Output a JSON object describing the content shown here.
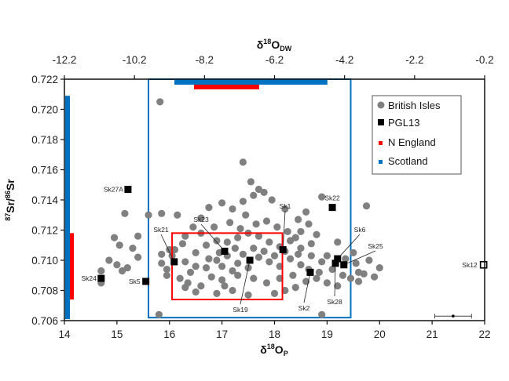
{
  "chart_data": {
    "type": "scatter",
    "title": "",
    "xlabel": {
      "main": "δ",
      "sup": "18",
      "base": "O",
      "sub": "P"
    },
    "x2label": {
      "main": "δ",
      "sup": "18",
      "base": "O",
      "sub": "DW"
    },
    "ylabel": {
      "sup1": "87",
      "t1": "Sr/",
      "sup2": "86",
      "t2": "Sr"
    },
    "xlim": [
      14,
      22
    ],
    "x2lim": [
      -12.2,
      -0.2
    ],
    "ylim": [
      0.706,
      0.722
    ],
    "x_ticks": [
      "14",
      "15",
      "16",
      "17",
      "18",
      "19",
      "20",
      "21",
      "22"
    ],
    "x2_ticks": [
      "-12.2",
      "-10.2",
      "-8.2",
      "-6.2",
      "-4.2",
      "-2.2",
      "-0.2"
    ],
    "y_ticks": [
      "0.722",
      "0.720",
      "0.718",
      "0.716",
      "0.714",
      "0.712",
      "0.710",
      "0.708",
      "0.706"
    ],
    "legend": {
      "position": "top-right",
      "entries": [
        {
          "label": "British Isles",
          "color": "#808080",
          "marker": "circle"
        },
        {
          "label": "PGL13",
          "color": "#000000",
          "marker": "square"
        },
        {
          "label": "N England",
          "color": "#ff0000",
          "marker": "square"
        },
        {
          "label": "Scotland",
          "color": "#0070c0",
          "marker": "square"
        }
      ]
    },
    "colors": {
      "british_isles": "#808080",
      "pgl13": "#000000",
      "n_england": "#ff0000",
      "scotland": "#0070c0"
    },
    "regions": {
      "scotland_box": {
        "x": [
          15.6,
          19.45
        ],
        "y": [
          0.7062,
          0.722
        ]
      },
      "n_england_box": {
        "x": [
          16.05,
          18.15
        ],
        "y": [
          0.7074,
          0.7118
        ]
      },
      "scotland_dw_range": [
        -9.06,
        -4.69
      ],
      "n_england_dw_range": [
        -8.5,
        -6.64
      ],
      "scotland_sr_range": [
        0.7061,
        0.7209
      ],
      "n_england_sr_range": [
        0.7074,
        0.7118
      ]
    },
    "error_bar": {
      "x": 21.4,
      "y": 0.7063,
      "x_err": 0.35
    },
    "pgl13": [
      {
        "label": "Sk27A",
        "x": 15.21,
        "y": 0.7147
      },
      {
        "label": "Sk24",
        "x": 14.7,
        "y": 0.7088
      },
      {
        "label": "Sk5",
        "x": 15.55,
        "y": 0.7086
      },
      {
        "label": "Sk21",
        "x": 16.09,
        "y": 0.7099
      },
      {
        "label": "Sk23",
        "x": 17.05,
        "y": 0.7106
      },
      {
        "label": "Sk19",
        "x": 17.53,
        "y": 0.71
      },
      {
        "label": "Sk1",
        "x": 18.16,
        "y": 0.7107
      },
      {
        "label": "Sk2",
        "x": 18.68,
        "y": 0.7092
      },
      {
        "label": "Sk22",
        "x": 19.1,
        "y": 0.7135
      },
      {
        "label": "Sk6",
        "x": 19.2,
        "y": 0.7101
      },
      {
        "label": "Sk28",
        "x": 19.16,
        "y": 0.7098
      },
      {
        "label": "Sk25",
        "x": 19.32,
        "y": 0.7097
      },
      {
        "label": "Sk12",
        "x": 21.98,
        "y": 0.7097,
        "open": true
      }
    ],
    "british_isles": [
      [
        15.82,
        0.7205
      ],
      [
        17.4,
        0.7165
      ],
      [
        14.95,
        0.7115
      ],
      [
        14.85,
        0.71
      ],
      [
        15.2,
        0.7095
      ],
      [
        15.15,
        0.7131
      ],
      [
        15.6,
        0.713
      ],
      [
        15.4,
        0.7116
      ],
      [
        15.05,
        0.711
      ],
      [
        15.3,
        0.7108
      ],
      [
        15.4,
        0.7102
      ],
      [
        15.0,
        0.7097
      ],
      [
        15.1,
        0.7093
      ],
      [
        14.7,
        0.7093
      ],
      [
        14.7,
        0.7085
      ],
      [
        15.85,
        0.7131
      ],
      [
        16.15,
        0.713
      ],
      [
        15.8,
        0.7064
      ],
      [
        18.9,
        0.7064
      ],
      [
        16.0,
        0.7107
      ],
      [
        15.85,
        0.7104
      ],
      [
        16.1,
        0.7107
      ],
      [
        15.95,
        0.7094
      ],
      [
        15.95,
        0.709
      ],
      [
        16.3,
        0.7116
      ],
      [
        16.45,
        0.7122
      ],
      [
        16.6,
        0.7128
      ],
      [
        16.75,
        0.7135
      ],
      [
        17.0,
        0.7138
      ],
      [
        17.2,
        0.7134
      ],
      [
        17.4,
        0.7139
      ],
      [
        17.6,
        0.7143
      ],
      [
        17.8,
        0.7145
      ],
      [
        17.95,
        0.714
      ],
      [
        17.7,
        0.7147
      ],
      [
        17.55,
        0.7152
      ],
      [
        18.2,
        0.7134
      ],
      [
        18.45,
        0.7127
      ],
      [
        18.6,
        0.7132
      ],
      [
        18.9,
        0.7142
      ],
      [
        19.75,
        0.7136
      ],
      [
        18.5,
        0.7119
      ],
      [
        18.8,
        0.7117
      ],
      [
        19.2,
        0.7112
      ],
      [
        19.5,
        0.7105
      ],
      [
        19.8,
        0.71
      ],
      [
        20.0,
        0.7095
      ],
      [
        19.6,
        0.7092
      ],
      [
        19.45,
        0.7088
      ],
      [
        19.7,
        0.7091
      ],
      [
        19.0,
        0.7085
      ],
      [
        18.4,
        0.7082
      ],
      [
        18.0,
        0.7078
      ],
      [
        17.5,
        0.7077
      ],
      [
        16.9,
        0.7078
      ],
      [
        16.5,
        0.7079
      ],
      [
        16.3,
        0.7082
      ],
      [
        16.6,
        0.7083
      ],
      [
        17.2,
        0.708
      ],
      [
        16.2,
        0.7088
      ],
      [
        16.4,
        0.7092
      ],
      [
        16.7,
        0.7095
      ],
      [
        16.9,
        0.71
      ],
      [
        17.1,
        0.7103
      ],
      [
        17.3,
        0.7098
      ],
      [
        17.5,
        0.7095
      ],
      [
        17.7,
        0.7102
      ],
      [
        17.9,
        0.7099
      ],
      [
        18.1,
        0.7096
      ],
      [
        18.3,
        0.7101
      ],
      [
        18.5,
        0.7097
      ],
      [
        18.7,
        0.7103
      ],
      [
        18.9,
        0.7099
      ],
      [
        19.1,
        0.7094
      ],
      [
        16.5,
        0.7105
      ],
      [
        16.7,
        0.711
      ],
      [
        16.9,
        0.7113
      ],
      [
        17.1,
        0.7112
      ],
      [
        17.3,
        0.7115
      ],
      [
        17.5,
        0.7118
      ],
      [
        17.7,
        0.7116
      ],
      [
        17.9,
        0.7112
      ],
      [
        18.1,
        0.7109
      ],
      [
        18.3,
        0.7113
      ],
      [
        18.5,
        0.7108
      ],
      [
        18.7,
        0.7111
      ],
      [
        16.3,
        0.7099
      ],
      [
        16.5,
        0.7096
      ],
      [
        16.8,
        0.7089
      ],
      [
        17.0,
        0.7087
      ],
      [
        17.3,
        0.709
      ],
      [
        17.6,
        0.7088
      ],
      [
        17.85,
        0.7085
      ],
      [
        18.1,
        0.7088
      ],
      [
        18.35,
        0.709
      ],
      [
        18.6,
        0.7086
      ],
      [
        18.85,
        0.7092
      ],
      [
        19.3,
        0.709
      ],
      [
        19.55,
        0.7098
      ],
      [
        16.25,
        0.7111
      ],
      [
        16.6,
        0.7118
      ],
      [
        16.85,
        0.7122
      ],
      [
        17.15,
        0.7125
      ],
      [
        17.35,
        0.7121
      ],
      [
        17.65,
        0.7124
      ],
      [
        17.85,
        0.7126
      ],
      [
        18.05,
        0.7122
      ],
      [
        18.25,
        0.7119
      ],
      [
        18.4,
        0.7115
      ],
      [
        17.0,
        0.7096
      ],
      [
        17.2,
        0.7093
      ],
      [
        17.4,
        0.7104
      ],
      [
        17.6,
        0.7108
      ],
      [
        17.8,
        0.7106
      ],
      [
        18.0,
        0.7103
      ],
      [
        18.2,
        0.7106
      ],
      [
        16.95,
        0.7105
      ],
      [
        17.25,
        0.7108
      ],
      [
        16.75,
        0.7101
      ],
      [
        18.45,
        0.7104
      ],
      [
        18.65,
        0.7094
      ],
      [
        18.8,
        0.7088
      ],
      [
        19.0,
        0.7103
      ],
      [
        19.35,
        0.7101
      ],
      [
        19.6,
        0.7086
      ],
      [
        19.2,
        0.7083
      ],
      [
        18.2,
        0.708
      ],
      [
        17.05,
        0.7083
      ],
      [
        16.35,
        0.7085
      ],
      [
        15.85,
        0.7098
      ],
      [
        16.05,
        0.7103
      ],
      [
        19.9,
        0.7089
      ],
      [
        17.45,
        0.713
      ],
      [
        18.65,
        0.7124
      ]
    ]
  }
}
